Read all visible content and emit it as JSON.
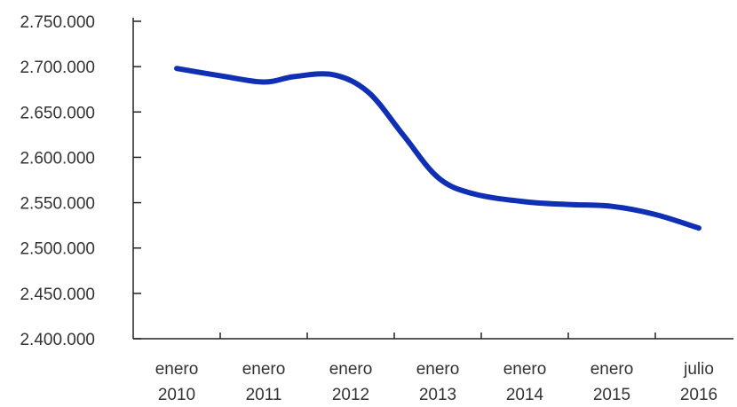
{
  "chart_data": {
    "type": "line",
    "title": "",
    "xlabel": "",
    "ylabel": "",
    "categories": [
      [
        "enero",
        "2010"
      ],
      [
        "enero",
        "2011"
      ],
      [
        "enero",
        "2012"
      ],
      [
        "enero",
        "2013"
      ],
      [
        "enero",
        "2014"
      ],
      [
        "enero",
        "2015"
      ],
      [
        "julio",
        "2016"
      ]
    ],
    "y_ticks": [
      "2.750.000",
      "2.700.000",
      "2.650.000",
      "2.600.000",
      "2.550.000",
      "2.500.000",
      "2.450.000",
      "2.400.000"
    ],
    "ylim": [
      2400000,
      2750000
    ],
    "grid": false,
    "smooth": true,
    "series": [
      {
        "color": "#0f2fb5",
        "x": [
          0,
          1,
          2,
          3,
          4,
          5,
          6
        ],
        "values": [
          2698000,
          2683000,
          2682000,
          2578000,
          2551000,
          2546000,
          2522000
        ],
        "detail": [
          [
            0.0,
            2698000
          ],
          [
            0.5,
            2690000
          ],
          [
            1.0,
            2683000
          ],
          [
            1.35,
            2689000
          ],
          [
            1.8,
            2691000
          ],
          [
            2.2,
            2672000
          ],
          [
            2.6,
            2625000
          ],
          [
            3.0,
            2578000
          ],
          [
            3.4,
            2560000
          ],
          [
            4.0,
            2551000
          ],
          [
            4.5,
            2548000
          ],
          [
            5.0,
            2546000
          ],
          [
            5.5,
            2537000
          ],
          [
            6.0,
            2522000
          ]
        ]
      }
    ]
  }
}
